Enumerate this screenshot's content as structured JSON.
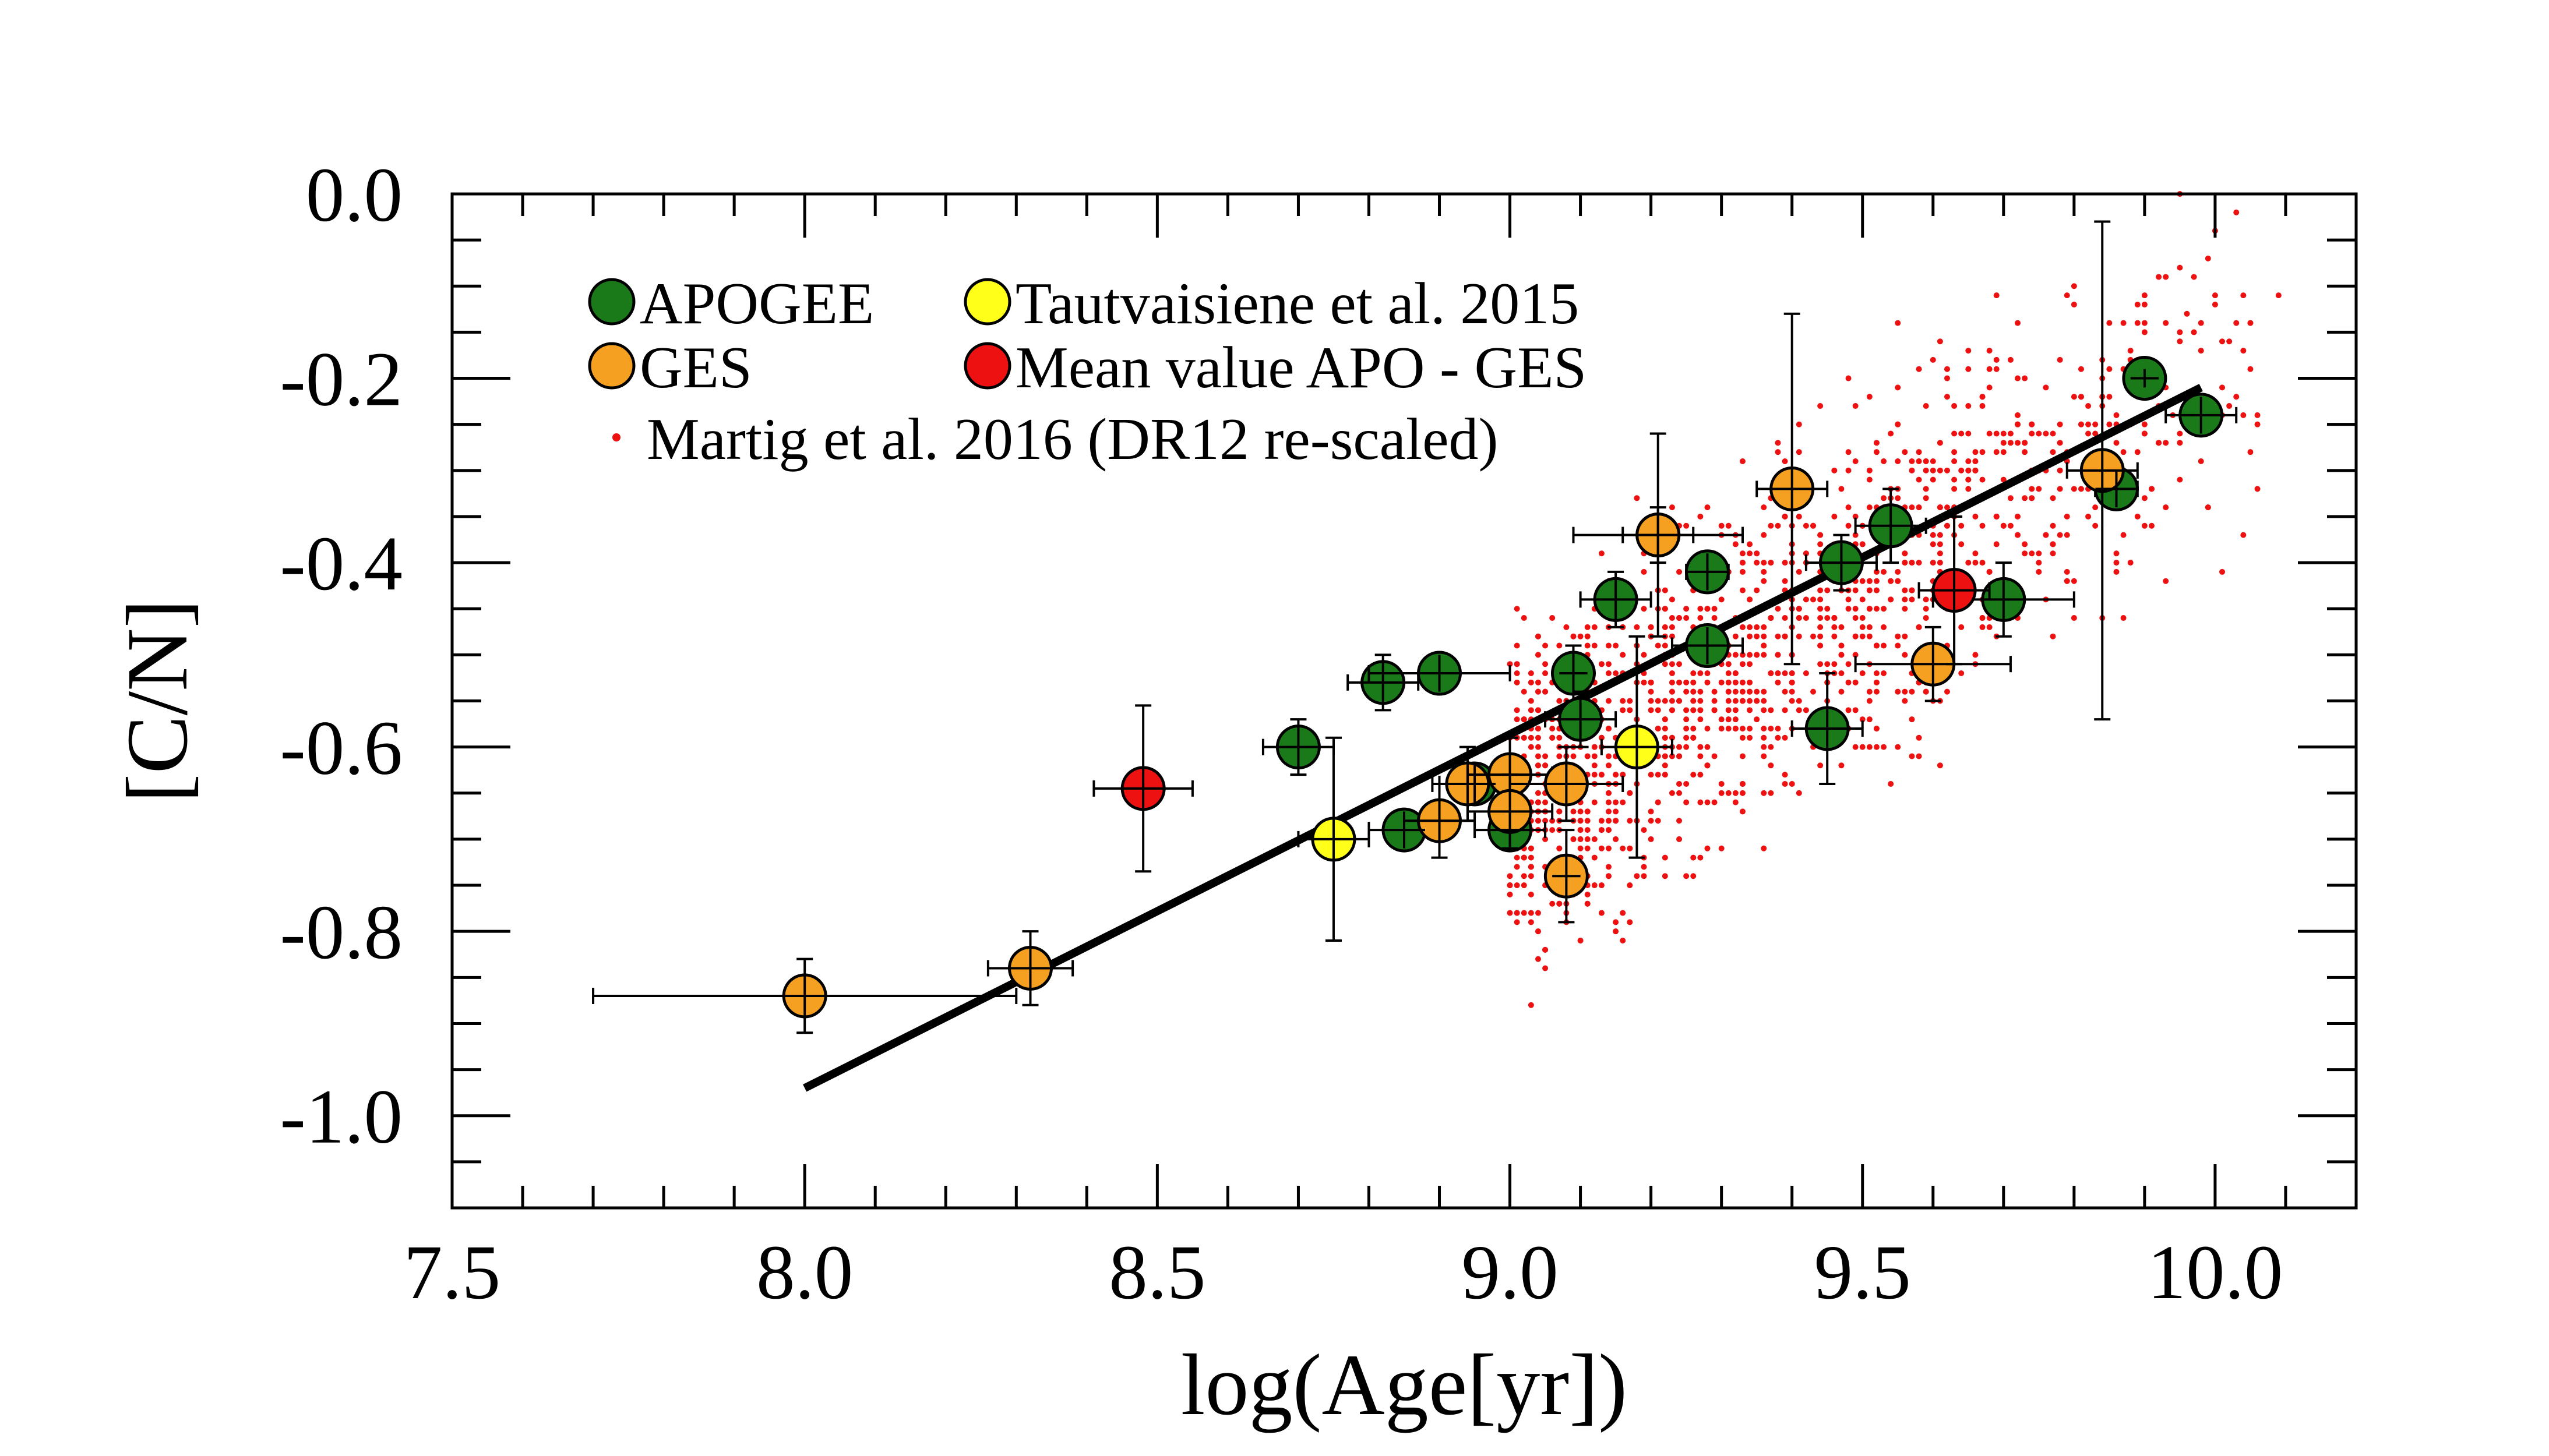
{
  "chart_data": {
    "type": "scatter",
    "xlabel": "log(Age[yr])",
    "ylabel": "[C/N]",
    "xlim": [
      7.5,
      10.2
    ],
    "ylim": [
      -1.1,
      0.0
    ],
    "x_ticks": [
      7.5,
      8.0,
      8.5,
      9.0,
      9.5,
      10.0
    ],
    "x_tick_labels": [
      "7.5",
      "8.0",
      "8.5",
      "9.0",
      "9.5",
      "10.0"
    ],
    "y_ticks": [
      0.0,
      -0.2,
      -0.4,
      -0.6,
      -0.8,
      -1.0
    ],
    "y_tick_labels": [
      "0.0",
      "-0.2",
      "-0.4",
      "-0.6",
      "-0.8",
      "-1.0"
    ],
    "x_minor_step": 0.1,
    "y_minor_step": 0.05,
    "colors": {
      "apogee": "#1a7a1a",
      "ges": "#f5a020",
      "tautvaisiene": "#ffff1a",
      "mean": "#ee1111",
      "martig": "#ee1111",
      "fit": "#000000"
    },
    "legend": {
      "placement": "top-left",
      "apogee": "APOGEE",
      "ges": "GES",
      "tautvaisiene": "Tautvaisiene et al. 2015",
      "mean": "Mean value APO - GES",
      "martig": "Martig et al. 2016 (DR12 re-scaled)"
    },
    "fit_line": {
      "x": [
        8.0,
        9.98
      ],
      "y": [
        -0.97,
        -0.21
      ]
    },
    "series": [
      {
        "name": "APOGEE",
        "color_key": "apogee",
        "points": [
          {
            "x": 8.7,
            "y": -0.6,
            "xerr": 0.05,
            "yerr": 0.03
          },
          {
            "x": 8.82,
            "y": -0.53,
            "xerr": 0.05,
            "yerr": 0.03
          },
          {
            "x": 8.9,
            "y": -0.52,
            "xerr": 0.1,
            "yerr": 0.02
          },
          {
            "x": 8.85,
            "y": -0.69,
            "xerr": 0.05,
            "yerr": 0.02
          },
          {
            "x": 8.95,
            "y": -0.64,
            "xerr": 0.05,
            "yerr": 0.02
          },
          {
            "x": 9.0,
            "y": -0.69,
            "xerr": 0.05,
            "yerr": 0.02
          },
          {
            "x": 9.09,
            "y": -0.52,
            "xerr": 0.02,
            "yerr": 0.03
          },
          {
            "x": 9.1,
            "y": -0.57,
            "xerr": 0.05,
            "yerr": 0.03
          },
          {
            "x": 9.15,
            "y": -0.44,
            "xerr": 0.05,
            "yerr": 0.03
          },
          {
            "x": 9.21,
            "y": -0.37,
            "xerr": 0.05,
            "yerr": 0.03
          },
          {
            "x": 9.28,
            "y": -0.41,
            "xerr": 0.03,
            "yerr": 0.02
          },
          {
            "x": 9.28,
            "y": -0.49,
            "xerr": 0.05,
            "yerr": 0.02
          },
          {
            "x": 9.45,
            "y": -0.58,
            "xerr": 0.05,
            "yerr": 0.06
          },
          {
            "x": 9.47,
            "y": -0.4,
            "xerr": 0.05,
            "yerr": 0.03
          },
          {
            "x": 9.54,
            "y": -0.36,
            "xerr": 0.05,
            "yerr": 0.04
          },
          {
            "x": 9.7,
            "y": -0.44,
            "xerr": 0.1,
            "yerr": 0.04
          },
          {
            "x": 9.86,
            "y": -0.32,
            "xerr": 0.03,
            "yerr": 0.02
          },
          {
            "x": 9.9,
            "y": -0.2,
            "xerr": 0.02,
            "yerr": 0.01
          },
          {
            "x": 9.98,
            "y": -0.24,
            "xerr": 0.05,
            "yerr": 0.02
          }
        ]
      },
      {
        "name": "GES",
        "color_key": "ges",
        "points": [
          {
            "x": 8.0,
            "y": -0.87,
            "xerr": 0.3,
            "yerr": 0.04
          },
          {
            "x": 8.32,
            "y": -0.84,
            "xerr": 0.06,
            "yerr": 0.04
          },
          {
            "x": 8.9,
            "y": -0.68,
            "xerr": 0.05,
            "yerr": 0.04
          },
          {
            "x": 8.94,
            "y": -0.64,
            "xerr": 0.05,
            "yerr": 0.04
          },
          {
            "x": 9.0,
            "y": -0.63,
            "xerr": 0.06,
            "yerr": 0.04
          },
          {
            "x": 9.0,
            "y": -0.67,
            "xerr": 0.06,
            "yerr": 0.04
          },
          {
            "x": 9.08,
            "y": -0.64,
            "xerr": 0.08,
            "yerr": 0.04
          },
          {
            "x": 9.08,
            "y": -0.74,
            "xerr": 0.02,
            "yerr": 0.05
          },
          {
            "x": 9.21,
            "y": -0.37,
            "xerr": 0.12,
            "yerr": 0.11
          },
          {
            "x": 9.4,
            "y": -0.32,
            "xerr": 0.05,
            "yerr": 0.19
          },
          {
            "x": 9.6,
            "y": -0.51,
            "xerr": 0.11,
            "yerr": 0.04
          },
          {
            "x": 9.84,
            "y": -0.3,
            "xerr": 0.05,
            "yerr": 0.27
          }
        ]
      },
      {
        "name": "Tautvaisiene et al. 2015",
        "color_key": "tautvaisiene",
        "points": [
          {
            "x": 8.75,
            "y": -0.7,
            "xerr": 0.05,
            "yerr": 0.11
          },
          {
            "x": 9.18,
            "y": -0.6,
            "xerr": 0.05,
            "yerr": 0.12
          }
        ]
      },
      {
        "name": "Mean value APO - GES",
        "color_key": "mean",
        "points": [
          {
            "x": 8.48,
            "y": -0.645,
            "xerr": 0.07,
            "yerr": 0.09
          },
          {
            "x": 9.63,
            "y": -0.43,
            "xerr": 0.05,
            "yerr": 0.08
          }
        ]
      }
    ],
    "martig_cloud": {
      "name": "Martig et al. 2016 (DR12 re-scaled)",
      "n_points": 1400,
      "trend": {
        "x_range": [
          9.0,
          10.1
        ],
        "y_at_9": -0.66,
        "slope": 0.46,
        "scatter": 0.09
      }
    }
  }
}
